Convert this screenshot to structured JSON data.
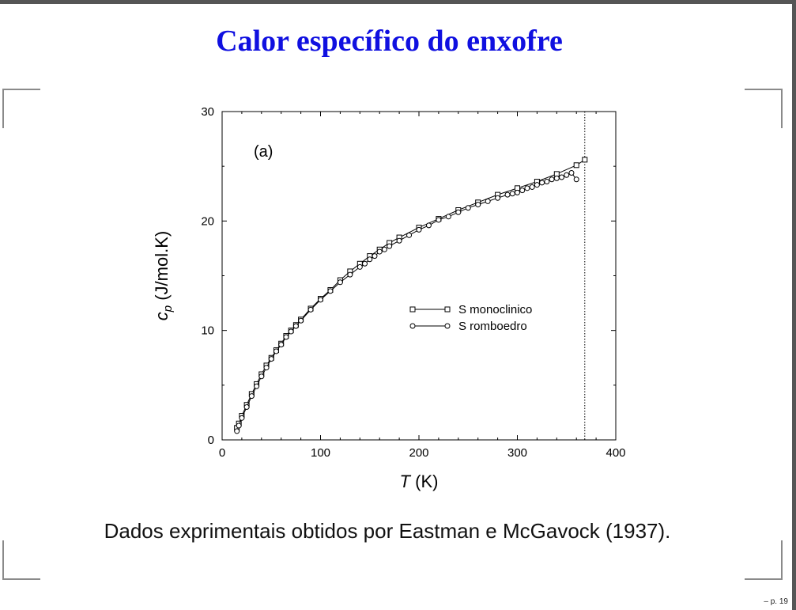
{
  "slide": {
    "title": "Calor específico do enxofre",
    "caption": "Dados exprimentais obtidos por Eastman e McGavock (1937).",
    "page": "– p. 19",
    "title_color": "#1010e0"
  },
  "chart_data": {
    "type": "line",
    "panel_label": "(a)",
    "xlabel": {
      "symbol": "T",
      "unit": " (K)"
    },
    "ylabel": {
      "symbol": "c",
      "subscript": "p",
      "unit": " (J/mol.K)"
    },
    "xlim": [
      0,
      400
    ],
    "ylim": [
      0,
      30
    ],
    "xticks": [
      0,
      100,
      200,
      300,
      400
    ],
    "yticks": [
      0,
      10,
      20,
      30
    ],
    "legend_position": "center-right",
    "reference_line": {
      "x": 368.5,
      "style": "dotted"
    },
    "series": [
      {
        "name": "S monoclinico",
        "marker": "square",
        "x": [
          15,
          17,
          20,
          25,
          30,
          35,
          40,
          45,
          50,
          55,
          60,
          65,
          70,
          75,
          80,
          90,
          100,
          110,
          120,
          130,
          140,
          150,
          160,
          170,
          180,
          200,
          220,
          240,
          260,
          280,
          300,
          320,
          340,
          360,
          368.5
        ],
        "y": [
          1.1,
          1.5,
          2.2,
          3.2,
          4.2,
          5.1,
          6.0,
          6.8,
          7.5,
          8.2,
          8.8,
          9.5,
          10.0,
          10.5,
          11.0,
          12.0,
          12.9,
          13.7,
          14.6,
          15.4,
          16.1,
          16.8,
          17.4,
          18.0,
          18.5,
          19.4,
          20.2,
          21.0,
          21.7,
          22.4,
          23.0,
          23.6,
          24.3,
          25.1,
          25.6
        ]
      },
      {
        "name": "S romboedro",
        "marker": "circle",
        "x": [
          15,
          17,
          20,
          25,
          30,
          35,
          40,
          45,
          50,
          55,
          60,
          65,
          70,
          75,
          80,
          90,
          100,
          110,
          120,
          130,
          140,
          145,
          150,
          155,
          160,
          165,
          170,
          180,
          190,
          200,
          210,
          220,
          230,
          240,
          250,
          260,
          270,
          280,
          290,
          295,
          300,
          305,
          310,
          315,
          320,
          325,
          330,
          335,
          340,
          345,
          350,
          355,
          360
        ],
        "y": [
          0.8,
          1.3,
          2.0,
          3.0,
          4.0,
          4.9,
          5.8,
          6.6,
          7.4,
          8.1,
          8.7,
          9.4,
          9.9,
          10.4,
          10.9,
          11.9,
          12.8,
          13.6,
          14.4,
          15.1,
          15.8,
          16.1,
          16.5,
          16.8,
          17.2,
          17.4,
          17.7,
          18.2,
          18.7,
          19.2,
          19.6,
          20.1,
          20.4,
          20.8,
          21.2,
          21.5,
          21.8,
          22.1,
          22.4,
          22.5,
          22.6,
          22.8,
          23.0,
          23.1,
          23.3,
          23.5,
          23.6,
          23.8,
          23.9,
          24.0,
          24.2,
          24.4,
          23.8
        ]
      }
    ]
  }
}
